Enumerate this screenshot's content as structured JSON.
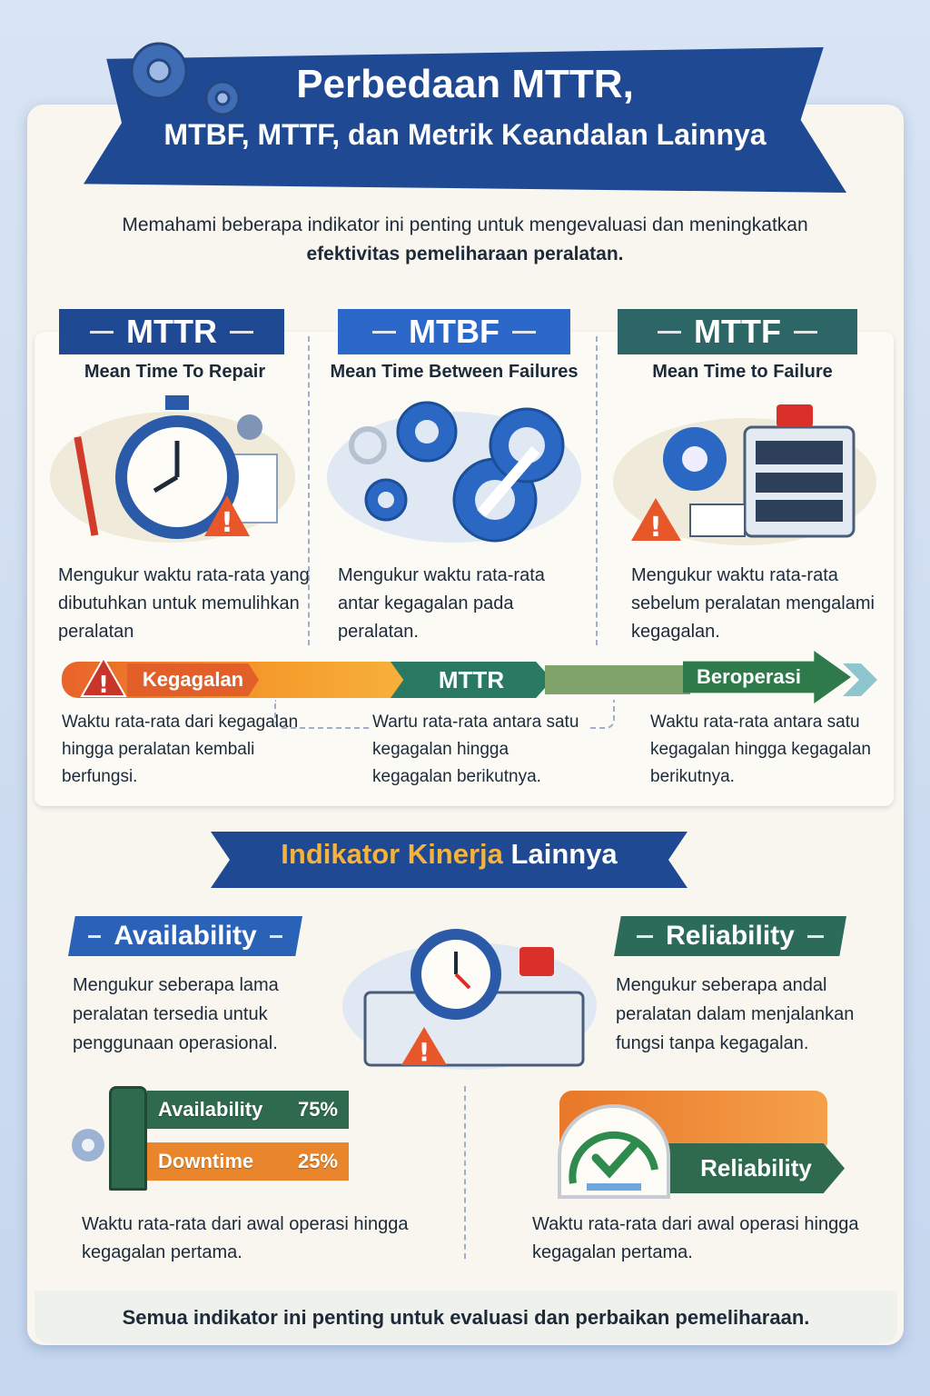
{
  "header": {
    "title_line1": "Perbedaan MTTR,",
    "title_line2": "MTBF, MTTF, dan Metrik Keandalan Lainnya",
    "subtitle_normal": "Memahami beberapa indikator ini penting untuk mengevaluasi dan meningkatkan",
    "subtitle_bold": "efektivitas pemeliharaan peralatan."
  },
  "metrics": [
    {
      "abbr": "MTTR",
      "name": "Mean Time To Repair",
      "desc": "Mengukur waktu rata-rata yang dibutuhkan untuk memulihkan peralatan",
      "color": "#1f4a93",
      "icon": "stopwatch-tools-warning-icon"
    },
    {
      "abbr": "MTBF",
      "name": "Mean Time Between Failures",
      "desc": "Mengukur waktu rata-rata antar kegagalan pada peralatan.",
      "color": "#2b68c9",
      "icon": "gears-wrench-icon"
    },
    {
      "abbr": "MTTF",
      "name": "Mean Time to Failure",
      "desc": "Mengukur waktu rata-rata sebelum peralatan mengalami kegagalan.",
      "color": "#2c6667",
      "icon": "server-alarm-icon"
    }
  ],
  "flow": {
    "step1": "Kegagalan",
    "step2": "MTTR",
    "step3": "Beroperasi",
    "notes": [
      "Waktu rata-rata dari kegagalan hingga peralatan kembali berfungsi.",
      "Wartu rata-rata antara satu kegagalan hingga kegagalan berikutnya.",
      "Waktu rata-rata antara satu kegagalan hingga kegagalan berikutnya."
    ]
  },
  "section2": {
    "title_highlight": "Indikator Kinerja",
    "title_rest": "Lainnya",
    "availability": {
      "label": "Availability",
      "desc": "Mengukur seberapa lama peralatan tersedia untuk penggunaan operasional.",
      "note": "Waktu rata-rata dari awal operasi hingga kegagalan pertama."
    },
    "reliability": {
      "label": "Reliability",
      "desc": "Mengukur seberapa andal peralatan dalam menjalankan fungsi tanpa kegagalan.",
      "note": "Waktu rata-rata dari awal operasi hingga kegagalan pertama.",
      "badge": "Reliability"
    },
    "bars": [
      {
        "label": "Availability",
        "value": "75%",
        "color": "#2f6a4e"
      },
      {
        "label": "Downtime",
        "value": "25%",
        "color": "#e9862b"
      }
    ]
  },
  "footer": {
    "text": "Semua indikator ini penting untuk evaluasi dan perbaikan pemeliharaan."
  }
}
